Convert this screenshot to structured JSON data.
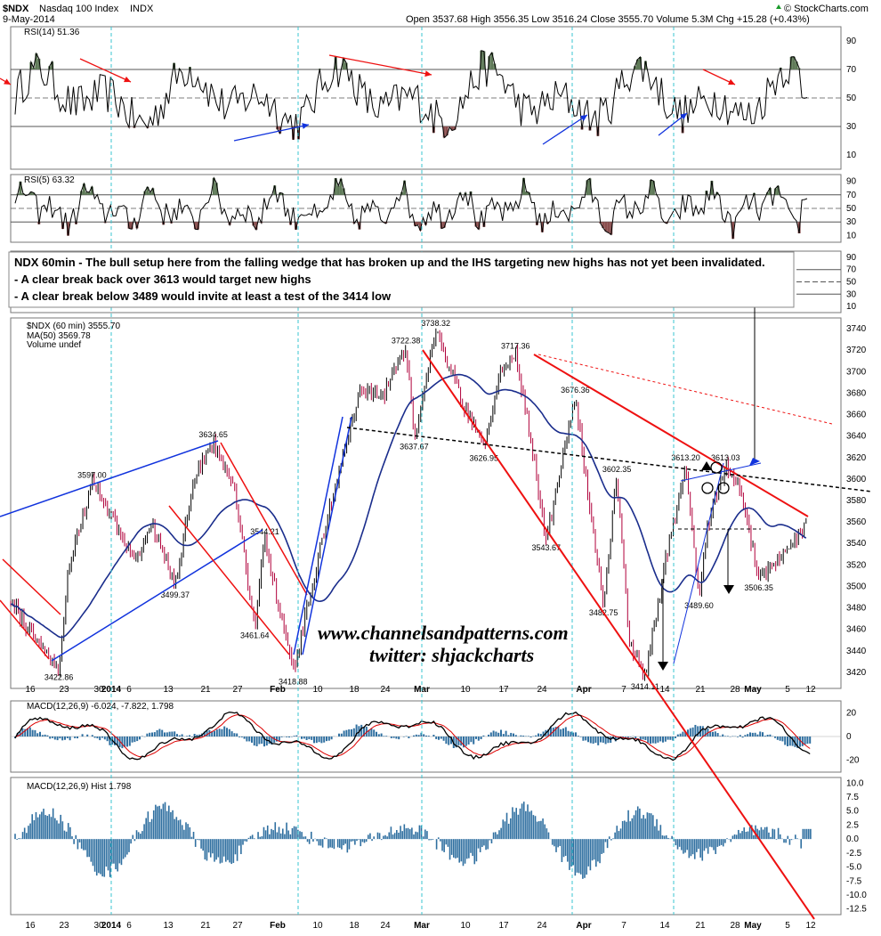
{
  "header": {
    "symbol": "$NDX",
    "name": "Nasdaq 100 Index",
    "exchange": "INDX",
    "date": "9-May-2014",
    "ohlc": "Open 3537.68  High 3556.35  Low 3516.24  Close 3555.70  Volume 5.3M  Chg +15.28 (+0.43%)",
    "trend_icon": "up-triangle-icon",
    "credit": "© StockCharts.com"
  },
  "annotation": {
    "line1": "NDX 60min - The bull setup here from the falling wedge that has broken up and the IHS targeting new highs has not yet been invalidated.",
    "line2": "- A clear break back over 3613 would target new highs",
    "line3": "- A clear break below 3489 would invite at least a test of the 3414 low"
  },
  "watermark": {
    "line1": "www.channelsandpatterns.com",
    "line2": "twitter: shjackcharts"
  },
  "x_labels": [
    "16",
    "23",
    "30",
    "2014",
    "6",
    "13",
    "21",
    "27",
    "Feb",
    "10",
    "18",
    "24",
    "Mar",
    "10",
    "17",
    "24",
    "Apr",
    "7",
    "14",
    "21",
    "28",
    "May",
    "5",
    "12"
  ],
  "chart_data": [
    {
      "type": "line",
      "title": "RSI(14) 51.36",
      "series": [
        {
          "name": "RSI(14)",
          "last": 51.36
        }
      ],
      "ylim": [
        0,
        100
      ],
      "ticks": [
        90,
        70,
        50,
        30,
        10
      ],
      "levels": [
        70,
        50,
        30
      ]
    },
    {
      "type": "line",
      "title": "RSI(5) 63.32",
      "series": [
        {
          "name": "RSI(5)",
          "last": 63.32
        }
      ],
      "ylim": [
        0,
        100
      ],
      "ticks": [
        90,
        70,
        50,
        30,
        10
      ],
      "levels": [
        70,
        50,
        30
      ]
    },
    {
      "type": "line",
      "title": "",
      "ticks": [
        90,
        70,
        50,
        30,
        10
      ]
    },
    {
      "type": "candlestick",
      "legend": [
        "$NDX (60 min) 3555.70",
        "MA(50) 3569.78",
        "Volume undef"
      ],
      "ylim": [
        3405,
        3750
      ],
      "ticks": [
        3740,
        3720,
        3700,
        3680,
        3660,
        3640,
        3620,
        3600,
        3580,
        3560,
        3540,
        3520,
        3500,
        3480,
        3460,
        3440,
        3420
      ],
      "price_labels": [
        {
          "text": "3422.86",
          "x": 0.058,
          "y": 3422.86
        },
        {
          "text": "3597.00",
          "x": 0.098,
          "y": 3597.0
        },
        {
          "text": "3499.37",
          "x": 0.198,
          "y": 3499.37
        },
        {
          "text": "3634.65",
          "x": 0.244,
          "y": 3634.65
        },
        {
          "text": "3544.21",
          "x": 0.306,
          "y": 3544.21
        },
        {
          "text": "3461.64",
          "x": 0.294,
          "y": 3461.64
        },
        {
          "text": "3418.88",
          "x": 0.34,
          "y": 3418.88
        },
        {
          "text": "3722.38",
          "x": 0.476,
          "y": 3722.38
        },
        {
          "text": "3738.32",
          "x": 0.512,
          "y": 3738.32
        },
        {
          "text": "3637.67",
          "x": 0.486,
          "y": 3637.67
        },
        {
          "text": "3717.36",
          "x": 0.608,
          "y": 3717.36
        },
        {
          "text": "3626.95",
          "x": 0.57,
          "y": 3626.95
        },
        {
          "text": "3543.67",
          "x": 0.645,
          "y": 3543.67
        },
        {
          "text": "3676.36",
          "x": 0.68,
          "y": 3676.36
        },
        {
          "text": "3602.35",
          "x": 0.73,
          "y": 3602.35
        },
        {
          "text": "3482.75",
          "x": 0.714,
          "y": 3482.75
        },
        {
          "text": "3414.11",
          "x": 0.764,
          "y": 3414.11
        },
        {
          "text": "3613.20",
          "x": 0.813,
          "y": 3613.2
        },
        {
          "text": "3613.03",
          "x": 0.861,
          "y": 3613.03
        },
        {
          "text": "3489.60",
          "x": 0.829,
          "y": 3489.6
        },
        {
          "text": "3506.35",
          "x": 0.901,
          "y": 3506.35
        }
      ]
    },
    {
      "type": "line",
      "title": "MACD(12,26,9) -6.024, -7.822, 1.798",
      "series": [
        {
          "name": "MACD",
          "last": -6.024,
          "color": "#000000"
        },
        {
          "name": "Signal",
          "last": -7.822,
          "color": "#dd0000"
        },
        {
          "name": "Hist",
          "last": 1.798,
          "color": "#2f6fa0"
        }
      ],
      "ticks": [
        20,
        0,
        -20
      ]
    },
    {
      "type": "bar",
      "title": "MACD(12,26,9) Hist 1.798",
      "series": [
        {
          "name": "Hist",
          "last": 1.798
        }
      ],
      "ylim": [
        -13.5,
        11
      ],
      "ticks": [
        10.0,
        7.5,
        5.0,
        2.5,
        0.0,
        -2.5,
        -5.0,
        -7.5,
        -10.0,
        -12.5
      ]
    }
  ],
  "colors": {
    "candle_up": "#000000",
    "candle_down": "#b0003a",
    "ma": "#1a2d8c",
    "trend_red": "#ee1111",
    "trend_blue": "#1133dd",
    "cyan_vline": "#39c6d0",
    "hist": "#2f6fa0",
    "rsi_over_fill": "#5f7a58",
    "rsi_under_fill": "#8a4f4f"
  }
}
